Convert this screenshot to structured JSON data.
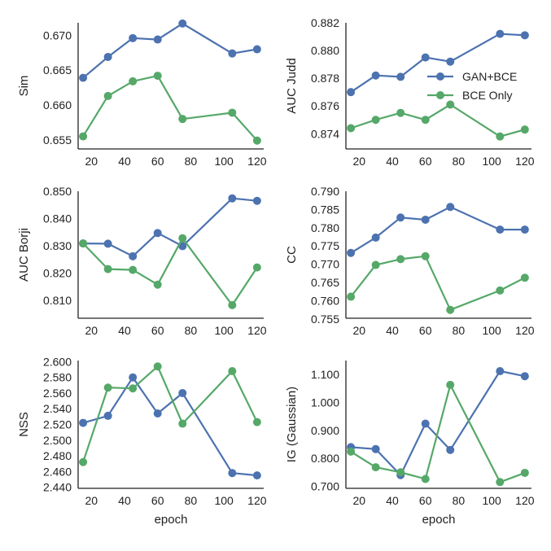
{
  "figure": {
    "colors": {
      "GAN+BCE": "#4c72b0",
      "BCE Only": "#55a868"
    },
    "legend": {
      "placement": "right-center of top-right panel",
      "entries": [
        "GAN+BCE",
        "BCE Only"
      ]
    }
  },
  "chart_data": [
    {
      "type": "line",
      "ylabel": "Sim",
      "xlabel": "",
      "x": [
        15,
        30,
        45,
        60,
        75,
        105,
        120
      ],
      "xlim": [
        12,
        124
      ],
      "xticks": [
        20,
        40,
        60,
        80,
        100,
        120
      ],
      "xtick_labels": [
        "20",
        "40",
        "60",
        "80",
        "100",
        "120"
      ],
      "ylim": [
        0.6537,
        0.6718
      ],
      "yticks": [
        0.655,
        0.66,
        0.665,
        0.67
      ],
      "ytick_labels": [
        "0.655",
        "0.660",
        "0.665",
        "0.670"
      ],
      "series": [
        {
          "name": "GAN+BCE",
          "values": [
            0.6639,
            0.6669,
            0.6696,
            0.6694,
            0.6717,
            0.6674,
            0.668
          ]
        },
        {
          "name": "BCE Only",
          "values": [
            0.6555,
            0.6613,
            0.6634,
            0.6642,
            0.658,
            0.6589,
            0.6549
          ]
        }
      ]
    },
    {
      "type": "line",
      "ylabel": "AUC Judd",
      "xlabel": "",
      "x": [
        15,
        30,
        45,
        60,
        75,
        105,
        120
      ],
      "xlim": [
        12,
        124
      ],
      "xticks": [
        20,
        40,
        60,
        80,
        100,
        120
      ],
      "xtick_labels": [
        "20",
        "40",
        "60",
        "80",
        "100",
        "120"
      ],
      "ylim": [
        0.8729,
        0.882
      ],
      "yticks": [
        0.874,
        0.876,
        0.878,
        0.88,
        0.882
      ],
      "ytick_labels": [
        "0.874",
        "0.876",
        "0.878",
        "0.880",
        "0.882"
      ],
      "series": [
        {
          "name": "GAN+BCE",
          "values": [
            0.877,
            0.8782,
            0.8781,
            0.8795,
            0.8792,
            0.8812,
            0.8811
          ]
        },
        {
          "name": "BCE Only",
          "values": [
            0.8744,
            0.875,
            0.8755,
            0.875,
            0.8761,
            0.8738,
            0.8743
          ]
        }
      ],
      "legend": true
    },
    {
      "type": "line",
      "ylabel": "AUC Borji",
      "xlabel": "",
      "x": [
        15,
        30,
        45,
        60,
        75,
        105,
        120
      ],
      "xlim": [
        12,
        124
      ],
      "xticks": [
        20,
        40,
        60,
        80,
        100,
        120
      ],
      "xtick_labels": [
        "20",
        "40",
        "60",
        "80",
        "100",
        "120"
      ],
      "ylim": [
        0.8035,
        0.85
      ],
      "yticks": [
        0.81,
        0.82,
        0.83,
        0.84,
        0.85
      ],
      "ytick_labels": [
        "0.810",
        "0.820",
        "0.830",
        "0.840",
        "0.850"
      ],
      "series": [
        {
          "name": "GAN+BCE",
          "values": [
            0.8309,
            0.8308,
            0.8262,
            0.8347,
            0.8299,
            0.8474,
            0.8465
          ]
        },
        {
          "name": "BCE Only",
          "values": [
            0.8309,
            0.8215,
            0.8212,
            0.8158,
            0.8328,
            0.8083,
            0.8221
          ]
        }
      ]
    },
    {
      "type": "line",
      "ylabel": "CC",
      "xlabel": "",
      "x": [
        15,
        30,
        45,
        60,
        75,
        105,
        120
      ],
      "xlim": [
        12,
        124
      ],
      "xticks": [
        20,
        40,
        60,
        80,
        100,
        120
      ],
      "xtick_labels": [
        "20",
        "40",
        "60",
        "80",
        "100",
        "120"
      ],
      "ylim": [
        0.7552,
        0.79
      ],
      "yticks": [
        0.755,
        0.76,
        0.765,
        0.77,
        0.775,
        0.78,
        0.785,
        0.79
      ],
      "ytick_labels": [
        "0.755",
        "0.760",
        "0.765",
        "0.770",
        "0.775",
        "0.780",
        "0.785",
        "0.790"
      ],
      "series": [
        {
          "name": "GAN+BCE",
          "values": [
            0.7731,
            0.7773,
            0.7828,
            0.7822,
            0.7857,
            0.7795,
            0.7795
          ]
        },
        {
          "name": "BCE Only",
          "values": [
            0.7611,
            0.7698,
            0.7714,
            0.7722,
            0.7575,
            0.7628,
            0.7663
          ]
        }
      ]
    },
    {
      "type": "line",
      "ylabel": "NSS",
      "xlabel": "epoch",
      "x": [
        15,
        30,
        45,
        60,
        75,
        105,
        120
      ],
      "xlim": [
        12,
        124
      ],
      "xticks": [
        20,
        40,
        60,
        80,
        100,
        120
      ],
      "xtick_labels": [
        "20",
        "40",
        "60",
        "80",
        "100",
        "120"
      ],
      "ylim": [
        2.4385,
        2.6015
      ],
      "yticks": [
        2.44,
        2.46,
        2.48,
        2.5,
        2.52,
        2.54,
        2.56,
        2.58,
        2.6
      ],
      "ytick_labels": [
        "2.440",
        "2.460",
        "2.480",
        "2.500",
        "2.520",
        "2.540",
        "2.560",
        "2.580",
        "2.600"
      ],
      "series": [
        {
          "name": "GAN+BCE",
          "values": [
            2.522,
            2.531,
            2.58,
            2.534,
            2.56,
            2.458,
            2.455
          ]
        },
        {
          "name": "BCE Only",
          "values": [
            2.472,
            2.567,
            2.566,
            2.594,
            2.521,
            2.588,
            2.523
          ]
        }
      ]
    },
    {
      "type": "line",
      "ylabel": "IG (Gaussian)",
      "xlabel": "epoch",
      "x": [
        15,
        30,
        45,
        60,
        75,
        105,
        120
      ],
      "xlim": [
        12,
        124
      ],
      "xticks": [
        20,
        40,
        60,
        80,
        100,
        120
      ],
      "xtick_labels": [
        "20",
        "40",
        "60",
        "80",
        "100",
        "120"
      ],
      "ylim": [
        0.6925,
        1.15
      ],
      "yticks": [
        0.7,
        0.8,
        0.9,
        1.0,
        1.1
      ],
      "ytick_labels": [
        "0.700",
        "0.800",
        "0.900",
        "1.000",
        "1.100"
      ],
      "series": [
        {
          "name": "GAN+BCE",
          "values": [
            0.84,
            0.833,
            0.74,
            0.924,
            0.83,
            1.112,
            1.094
          ]
        },
        {
          "name": "BCE Only",
          "values": [
            0.824,
            0.768,
            0.75,
            0.726,
            1.063,
            0.715,
            0.748
          ]
        }
      ]
    }
  ]
}
